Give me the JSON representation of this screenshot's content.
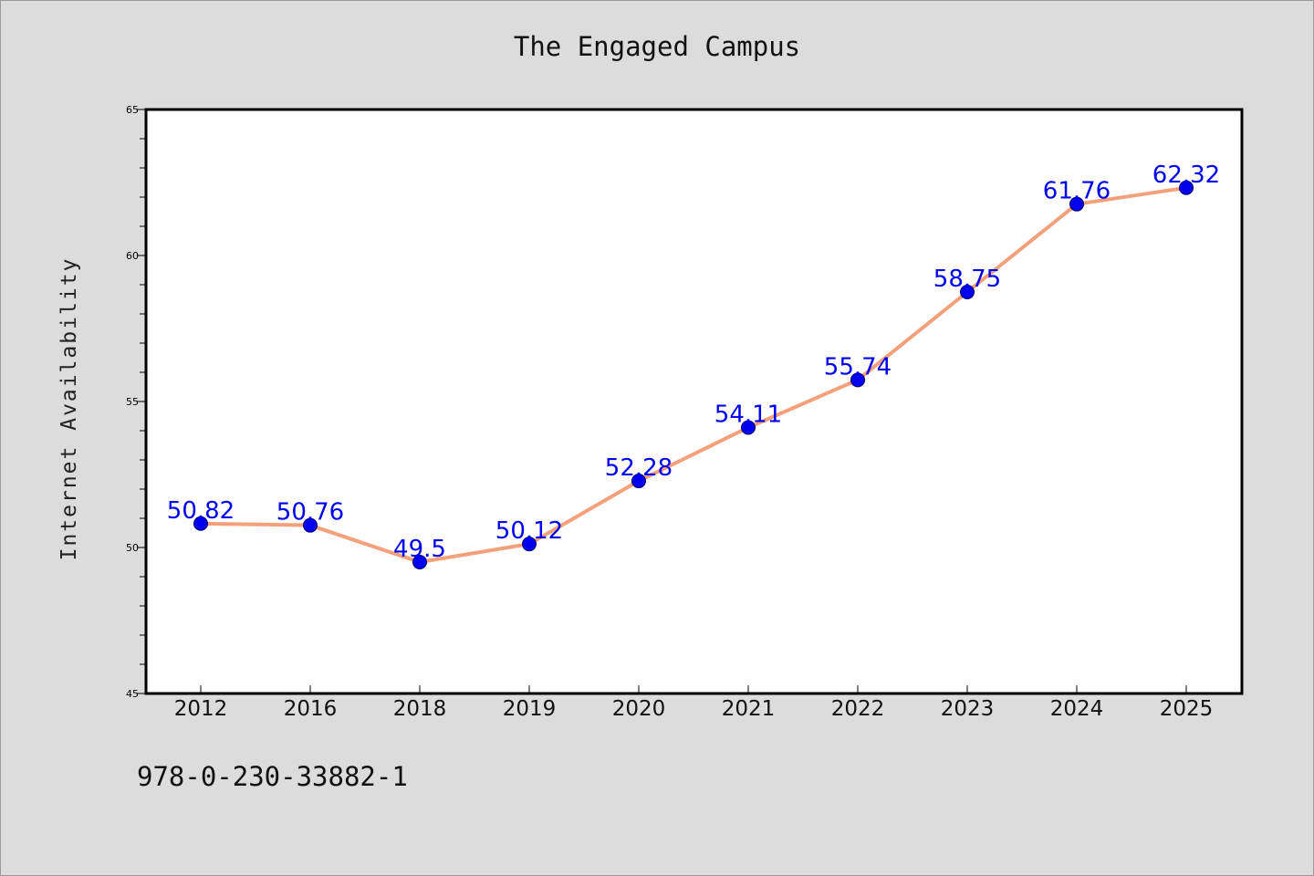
{
  "page": {
    "background": "#dcdcdc",
    "footnote": "978-0-230-33882-1"
  },
  "chart_data": {
    "type": "line",
    "title": "The Engaged Campus",
    "xlabel": "",
    "ylabel": "Internet Availability",
    "categories": [
      "2012",
      "2016",
      "2018",
      "2019",
      "2020",
      "2021",
      "2022",
      "2023",
      "2024",
      "2025"
    ],
    "series": [
      {
        "values": [
          50.82,
          50.76,
          49.5,
          50.12,
          52.28,
          54.11,
          55.74,
          58.75,
          61.76,
          62.32
        ],
        "data_labels": [
          "50.82",
          "50.76",
          "49.5",
          "50.12",
          "52.28",
          "54.11",
          "55.74",
          "58.75",
          "61.76",
          "62.32"
        ],
        "line_color": "#f4a07a",
        "marker_color": "#0000ee"
      }
    ],
    "ylim": [
      45,
      65
    ],
    "y_ticks": [
      "45",
      "50",
      "55",
      "60",
      "65"
    ],
    "y_minor_step": 1,
    "grid": false,
    "legend": "none"
  }
}
